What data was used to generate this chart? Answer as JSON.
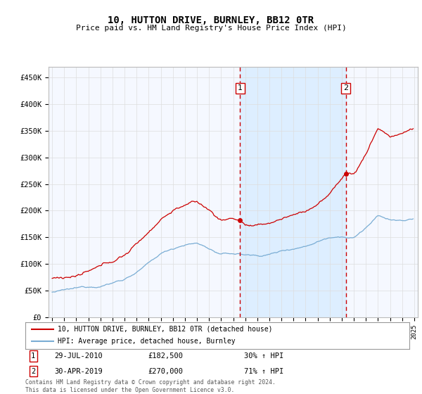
{
  "title": "10, HUTTON DRIVE, BURNLEY, BB12 0TR",
  "subtitle": "Price paid vs. HM Land Registry's House Price Index (HPI)",
  "ylabel_ticks": [
    "£0",
    "£50K",
    "£100K",
    "£150K",
    "£200K",
    "£250K",
    "£300K",
    "£350K",
    "£400K",
    "£450K"
  ],
  "ytick_values": [
    0,
    50000,
    100000,
    150000,
    200000,
    250000,
    300000,
    350000,
    400000,
    450000
  ],
  "xlim": [
    1994.7,
    2025.3
  ],
  "ylim": [
    0,
    470000
  ],
  "transaction1": {
    "date_num": 2010.57,
    "price": 182500,
    "label": "1"
  },
  "transaction2": {
    "date_num": 2019.33,
    "price": 270000,
    "label": "2"
  },
  "legend_line1": "10, HUTTON DRIVE, BURNLEY, BB12 0TR (detached house)",
  "legend_line2": "HPI: Average price, detached house, Burnley",
  "ann1_date": "29-JUL-2010",
  "ann1_price": "£182,500",
  "ann1_hpi": "30% ↑ HPI",
  "ann2_date": "30-APR-2019",
  "ann2_price": "£270,000",
  "ann2_hpi": "71% ↑ HPI",
  "footer": "Contains HM Land Registry data © Crown copyright and database right 2024.\nThis data is licensed under the Open Government Licence v3.0.",
  "red_color": "#cc0000",
  "blue_color": "#7aadd4",
  "shade_color": "#ddeeff",
  "background_color": "#f5f8ff",
  "grid_color": "#dddddd"
}
